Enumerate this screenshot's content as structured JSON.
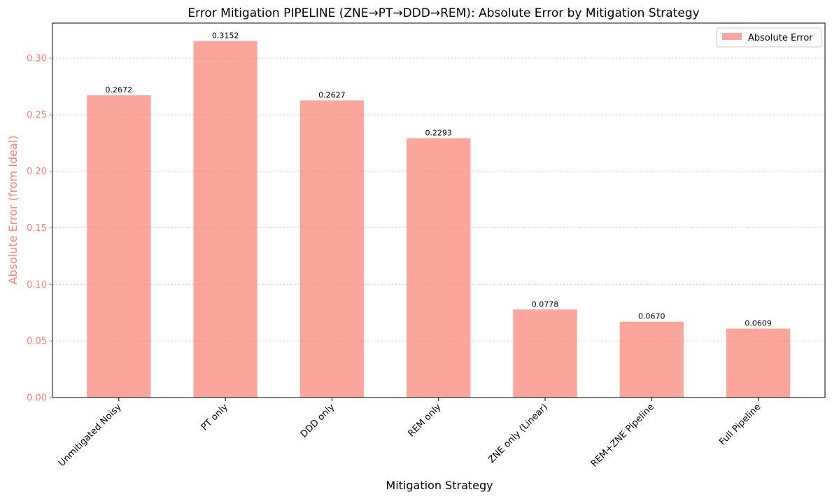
{
  "colors": {
    "bar": "#fa8072",
    "axis_label": "#fa8072",
    "grid": "#cccccc",
    "spine": "#000000"
  },
  "chart_data": {
    "type": "bar",
    "title": "Error Mitigation PIPELINE (ZNE→PT→DDD→REM): Absolute Error by Mitigation Strategy",
    "xlabel": "Mitigation Strategy",
    "ylabel": "Absolute Error (from Ideal)",
    "categories": [
      "Unmitigated Noisy",
      "PT only",
      "DDD only",
      "REM only",
      "ZNE only (Linear)",
      "REM+ZNE Pipeline",
      "Full Pipeline"
    ],
    "series": [
      {
        "name": "Absolute Error",
        "values": [
          0.2672,
          0.3152,
          0.2627,
          0.2293,
          0.0778,
          0.067,
          0.0609
        ],
        "labels": [
          "0.2672",
          "0.3152",
          "0.2627",
          "0.2293",
          "0.0778",
          "0.0670",
          "0.0609"
        ]
      }
    ],
    "ylim": [
      0,
      0.331
    ],
    "yticks": [
      0.0,
      0.05,
      0.1,
      0.15,
      0.2,
      0.25,
      0.3
    ],
    "ytick_labels": [
      "0.00",
      "0.05",
      "0.10",
      "0.15",
      "0.20",
      "0.25",
      "0.30"
    ],
    "grid": "y-dotted",
    "legend": "top-right"
  }
}
